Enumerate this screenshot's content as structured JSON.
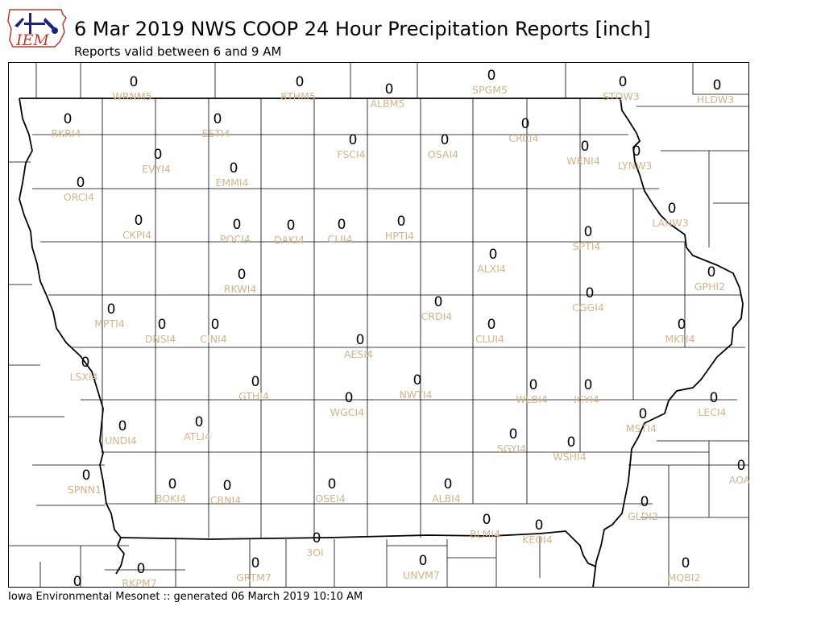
{
  "header": {
    "logo_text": "IEM",
    "title": "6 Mar 2019 NWS COOP 24 Hour Precipitation Reports [inch]",
    "subtitle": "Reports valid between 6 and 9 AM"
  },
  "footer": {
    "text": "Iowa Environmental Mesonet :: generated 06 March 2019 10:10 AM"
  },
  "colors": {
    "station_label": "#d2b48c",
    "value_text": "#000000",
    "county_line": "#000000"
  },
  "stations": [
    {
      "id": "WRNM5",
      "value": "0"
    },
    {
      "id": "8THM5",
      "value": "0"
    },
    {
      "id": "ALBM5",
      "value": "0"
    },
    {
      "id": "SPGM5",
      "value": "0"
    },
    {
      "id": "STOW3",
      "value": "0"
    },
    {
      "id": "HLDW3",
      "value": "0"
    },
    {
      "id": "RKRI4",
      "value": "0"
    },
    {
      "id": "ESTI4",
      "value": "0"
    },
    {
      "id": "CRCI4",
      "value": "0"
    },
    {
      "id": "FSCI4",
      "value": "0"
    },
    {
      "id": "OSAI4",
      "value": "0"
    },
    {
      "id": "WKNI4",
      "value": "0"
    },
    {
      "id": "LYNW3",
      "value": "0"
    },
    {
      "id": "EVYI4",
      "value": "0"
    },
    {
      "id": "EMMI4",
      "value": "0"
    },
    {
      "id": "ORCI4",
      "value": "0"
    },
    {
      "id": "LANW3",
      "value": "0"
    },
    {
      "id": "CKPI4",
      "value": "0"
    },
    {
      "id": "POCI4",
      "value": "0"
    },
    {
      "id": "DAKI4",
      "value": "0"
    },
    {
      "id": "CLII4",
      "value": "0"
    },
    {
      "id": "HPTI4",
      "value": "0"
    },
    {
      "id": "SPTI4",
      "value": "0"
    },
    {
      "id": "ALXI4",
      "value": "0"
    },
    {
      "id": "RKWI4",
      "value": "0"
    },
    {
      "id": "GPHI2",
      "value": "0"
    },
    {
      "id": "CGGI4",
      "value": "0"
    },
    {
      "id": "CRDI4",
      "value": "0"
    },
    {
      "id": "MPTI4",
      "value": "0"
    },
    {
      "id": "CLUI4",
      "value": "0"
    },
    {
      "id": "DNSI4",
      "value": "0"
    },
    {
      "id": "CINI4",
      "value": "0"
    },
    {
      "id": "MKTI4",
      "value": "0"
    },
    {
      "id": "AESI4",
      "value": "0"
    },
    {
      "id": "LSXI4",
      "value": "0"
    },
    {
      "id": "NWTI4",
      "value": "0"
    },
    {
      "id": "GTHI4",
      "value": "0"
    },
    {
      "id": "WLBI4",
      "value": "0"
    },
    {
      "id": "ICYI4",
      "value": "0"
    },
    {
      "id": "WGCI4",
      "value": "0"
    },
    {
      "id": "LECI4",
      "value": "0"
    },
    {
      "id": "MSTI4",
      "value": "0"
    },
    {
      "id": "UNDI4",
      "value": "0"
    },
    {
      "id": "ATLI4",
      "value": "0"
    },
    {
      "id": "SGYI4",
      "value": "0"
    },
    {
      "id": "WSHI4",
      "value": "0"
    },
    {
      "id": "AOA",
      "value": "0"
    },
    {
      "id": "SPNN1",
      "value": "0"
    },
    {
      "id": "BOKI4",
      "value": "0"
    },
    {
      "id": "CRNI4",
      "value": "0"
    },
    {
      "id": "OSEI4",
      "value": "0"
    },
    {
      "id": "ALBI4",
      "value": "0"
    },
    {
      "id": "GLDI2",
      "value": "0"
    },
    {
      "id": "BLMI4",
      "value": "0"
    },
    {
      "id": "KEOI4",
      "value": "0"
    },
    {
      "id": "3OI",
      "value": "0"
    },
    {
      "id": "RKPM7",
      "value": "0"
    },
    {
      "id": "GRTM7",
      "value": "0"
    },
    {
      "id": "UNVM7",
      "value": "0"
    },
    {
      "id": "MQBI2",
      "value": "0"
    },
    {
      "id": "",
      "value": "0"
    }
  ]
}
